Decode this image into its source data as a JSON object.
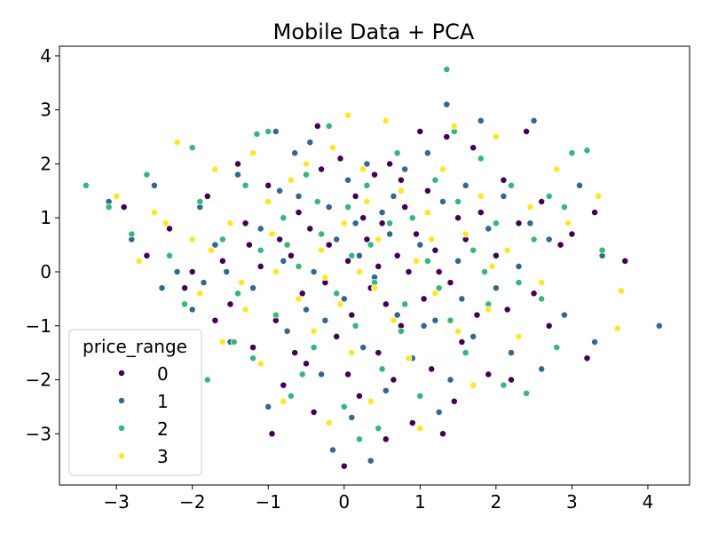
{
  "chart_data": {
    "type": "scatter",
    "title": "Mobile Data + PCA",
    "xlabel": "",
    "ylabel": "",
    "xlim": [
      -3.75,
      4.55
    ],
    "ylim": [
      -3.95,
      4.18
    ],
    "x_ticks": [
      -3,
      -2,
      -1,
      0,
      1,
      2,
      3,
      4
    ],
    "y_ticks": [
      -3,
      -2,
      -1,
      0,
      1,
      2,
      3,
      4
    ],
    "x_tick_labels": [
      "−3",
      "−2",
      "−1",
      "0",
      "1",
      "2",
      "3",
      "4"
    ],
    "y_tick_labels": [
      "−3",
      "−2",
      "−1",
      "0",
      "1",
      "2",
      "3",
      "4"
    ],
    "grid": false,
    "legend": {
      "title": "price_range",
      "position": "lower-left",
      "entries": [
        "0",
        "1",
        "2",
        "3"
      ]
    },
    "series": [
      {
        "name": "0",
        "color": "#440154",
        "points": [
          [
            -2.9,
            1.2
          ],
          [
            -2.6,
            0.3
          ],
          [
            -2.3,
            0.8
          ],
          [
            -2.1,
            -0.3
          ],
          [
            -1.8,
            1.4
          ],
          [
            -1.6,
            0.2
          ],
          [
            -1.5,
            -0.6
          ],
          [
            -1.3,
            0.9
          ],
          [
            -1.2,
            -1.4
          ],
          [
            -1.1,
            0.1
          ],
          [
            -1.0,
            1.6
          ],
          [
            -0.9,
            -0.9
          ],
          [
            -0.85,
            0.6
          ],
          [
            -0.8,
            -2.1
          ],
          [
            -0.7,
            0.3
          ],
          [
            -0.6,
            1.1
          ],
          [
            -0.55,
            -0.4
          ],
          [
            -0.5,
            -1.7
          ],
          [
            -0.45,
            0.8
          ],
          [
            -0.4,
            -2.6
          ],
          [
            -0.3,
            1.9
          ],
          [
            -0.25,
            -0.2
          ],
          [
            -0.2,
            0.5
          ],
          [
            -0.1,
            -1.2
          ],
          [
            -0.05,
            2.1
          ],
          [
            0.0,
            -3.6
          ],
          [
            0.05,
            0.2
          ],
          [
            0.1,
            -0.8
          ],
          [
            0.15,
            1.4
          ],
          [
            0.2,
            -2.3
          ],
          [
            0.3,
            0.6
          ],
          [
            0.35,
            -0.3
          ],
          [
            0.4,
            1.8
          ],
          [
            0.45,
            -1.5
          ],
          [
            0.5,
            0.9
          ],
          [
            0.55,
            -0.6
          ],
          [
            0.6,
            2.0
          ],
          [
            0.65,
            -2.0
          ],
          [
            0.7,
            0.3
          ],
          [
            0.75,
            -1.0
          ],
          [
            0.8,
            1.2
          ],
          [
            0.85,
            0.0
          ],
          [
            0.9,
            -2.8
          ],
          [
            0.95,
            0.7
          ],
          [
            1.0,
            2.6
          ],
          [
            1.05,
            -0.5
          ],
          [
            1.1,
            1.5
          ],
          [
            1.15,
            -1.8
          ],
          [
            1.2,
            0.4
          ],
          [
            1.3,
            -3.0
          ],
          [
            1.35,
            2.5
          ],
          [
            1.4,
            -0.2
          ],
          [
            1.5,
            1.0
          ],
          [
            1.55,
            -1.3
          ],
          [
            1.6,
            0.6
          ],
          [
            1.7,
            2.3
          ],
          [
            1.75,
            -0.8
          ],
          [
            1.8,
            1.1
          ],
          [
            1.9,
            -1.9
          ],
          [
            2.0,
            0.3
          ],
          [
            2.1,
            1.7
          ],
          [
            2.2,
            -2.0
          ],
          [
            2.3,
            0.9
          ],
          [
            2.4,
            2.6
          ],
          [
            2.5,
            -0.4
          ],
          [
            2.6,
            1.3
          ],
          [
            2.7,
            -1.0
          ],
          [
            2.8,
            1.9
          ],
          [
            3.0,
            0.7
          ],
          [
            3.2,
            -1.6
          ],
          [
            3.3,
            1.1
          ],
          [
            3.7,
            0.2
          ],
          [
            -1.4,
            2.0
          ],
          [
            -0.95,
            -3.0
          ],
          [
            -0.35,
            2.7
          ],
          [
            0.25,
            1.0
          ],
          [
            0.55,
            -3.1
          ],
          [
            1.25,
            0.0
          ],
          [
            -2.0,
            0.0
          ],
          [
            -1.7,
            -0.9
          ],
          [
            -0.65,
            -1.5
          ],
          [
            0.05,
            -1.9
          ],
          [
            0.75,
            1.7
          ],
          [
            1.45,
            -2.4
          ],
          [
            2.15,
            -0.7
          ],
          [
            2.85,
            0.5
          ],
          [
            -1.25,
            0.5
          ],
          [
            0.45,
            0.1
          ]
        ]
      },
      {
        "name": "1",
        "color": "#31688e",
        "points": [
          [
            -3.1,
            1.3
          ],
          [
            -2.8,
            0.6
          ],
          [
            -2.5,
            1.6
          ],
          [
            -2.2,
            0.0
          ],
          [
            -2.0,
            -0.7
          ],
          [
            -1.9,
            1.2
          ],
          [
            -1.7,
            0.5
          ],
          [
            -1.5,
            -1.3
          ],
          [
            -1.4,
            1.8
          ],
          [
            -1.2,
            -0.3
          ],
          [
            -1.1,
            0.8
          ],
          [
            -1.0,
            -2.5
          ],
          [
            -0.9,
            2.6
          ],
          [
            -0.8,
            0.2
          ],
          [
            -0.75,
            -1.1
          ],
          [
            -0.6,
            1.4
          ],
          [
            -0.5,
            -0.7
          ],
          [
            -0.45,
            2.4
          ],
          [
            -0.4,
            0.0
          ],
          [
            -0.3,
            -1.9
          ],
          [
            -0.2,
            1.2
          ],
          [
            -0.15,
            -3.3
          ],
          [
            -0.1,
            0.6
          ],
          [
            0.0,
            -0.5
          ],
          [
            0.05,
            1.7
          ],
          [
            0.1,
            -2.7
          ],
          [
            0.2,
            0.3
          ],
          [
            0.25,
            -1.4
          ],
          [
            0.3,
            2.0
          ],
          [
            0.4,
            -0.1
          ],
          [
            0.5,
            1.1
          ],
          [
            0.55,
            -2.2
          ],
          [
            0.6,
            0.7
          ],
          [
            0.7,
            -0.8
          ],
          [
            0.8,
            1.9
          ],
          [
            0.9,
            -1.6
          ],
          [
            1.0,
            0.5
          ],
          [
            1.1,
            2.2
          ],
          [
            1.2,
            -0.9
          ],
          [
            1.3,
            1.3
          ],
          [
            1.35,
            3.1
          ],
          [
            1.4,
            -2.0
          ],
          [
            1.5,
            0.2
          ],
          [
            1.6,
            1.6
          ],
          [
            1.7,
            -1.2
          ],
          [
            1.8,
            2.8
          ],
          [
            1.9,
            0.8
          ],
          [
            2.0,
            -0.3
          ],
          [
            2.1,
            1.4
          ],
          [
            2.2,
            -1.5
          ],
          [
            2.3,
            0.1
          ],
          [
            2.5,
            2.8
          ],
          [
            2.6,
            -1.8
          ],
          [
            2.7,
            0.6
          ],
          [
            2.9,
            -0.8
          ],
          [
            3.1,
            1.6
          ],
          [
            3.3,
            -1.3
          ],
          [
            3.4,
            0.3
          ],
          [
            4.15,
            -1.0
          ],
          [
            -2.4,
            -0.3
          ],
          [
            -1.55,
            0.0
          ],
          [
            -0.65,
            2.2
          ],
          [
            0.35,
            -3.5
          ],
          [
            1.25,
            -2.6
          ],
          [
            -1.85,
            -0.2
          ],
          [
            -0.25,
            -0.9
          ],
          [
            0.65,
            1.4
          ],
          [
            1.55,
            -0.5
          ],
          [
            2.45,
            0.9
          ],
          [
            -0.85,
            1.5
          ],
          [
            0.15,
            0.9
          ],
          [
            1.05,
            -1.0
          ]
        ]
      },
      {
        "name": "2",
        "color": "#35b779",
        "points": [
          [
            -3.4,
            1.6
          ],
          [
            -3.1,
            1.2
          ],
          [
            -2.8,
            0.7
          ],
          [
            -2.6,
            1.8
          ],
          [
            -2.3,
            0.3
          ],
          [
            -2.1,
            -0.6
          ],
          [
            -1.9,
            1.3
          ],
          [
            -1.8,
            -2.0
          ],
          [
            -1.6,
            0.6
          ],
          [
            -1.4,
            -0.4
          ],
          [
            -1.3,
            1.6
          ],
          [
            -1.2,
            -1.6
          ],
          [
            -1.1,
            0.4
          ],
          [
            -1.0,
            2.6
          ],
          [
            -0.9,
            -0.8
          ],
          [
            -0.8,
            1.0
          ],
          [
            -0.7,
            -2.3
          ],
          [
            -0.6,
            0.1
          ],
          [
            -0.5,
            1.8
          ],
          [
            -0.4,
            -1.4
          ],
          [
            -0.3,
            0.7
          ],
          [
            -0.2,
            2.7
          ],
          [
            -0.1,
            -0.4
          ],
          [
            0.0,
            -2.5
          ],
          [
            0.05,
            1.2
          ],
          [
            0.1,
            0.3
          ],
          [
            0.15,
            -1.0
          ],
          [
            0.2,
            -3.1
          ],
          [
            0.3,
            1.6
          ],
          [
            0.4,
            -0.2
          ],
          [
            0.5,
            -1.8
          ],
          [
            0.6,
            0.9
          ],
          [
            0.7,
            2.2
          ],
          [
            0.8,
            -0.6
          ],
          [
            0.9,
            1.0
          ],
          [
            1.0,
            -2.3
          ],
          [
            1.1,
            0.2
          ],
          [
            1.2,
            1.7
          ],
          [
            1.35,
            3.75
          ],
          [
            1.4,
            -0.9
          ],
          [
            1.5,
            1.3
          ],
          [
            1.6,
            -1.5
          ],
          [
            1.7,
            0.4
          ],
          [
            1.8,
            2.1
          ],
          [
            1.9,
            -0.6
          ],
          [
            2.0,
            0.9
          ],
          [
            2.1,
            -2.1
          ],
          [
            2.2,
            1.6
          ],
          [
            2.3,
            -0.2
          ],
          [
            2.4,
            -2.25
          ],
          [
            2.5,
            0.6
          ],
          [
            2.7,
            1.4
          ],
          [
            2.8,
            -1.4
          ],
          [
            2.9,
            1.2
          ],
          [
            3.0,
            2.2
          ],
          [
            3.2,
            2.25
          ],
          [
            3.4,
            0.4
          ],
          [
            -2.0,
            2.3
          ],
          [
            -1.15,
            2.55
          ],
          [
            -0.55,
            -1.9
          ],
          [
            0.45,
            -2.9
          ],
          [
            1.45,
            2.6
          ],
          [
            -1.45,
            -1.3
          ],
          [
            -0.35,
            1.3
          ],
          [
            0.75,
            -1.1
          ],
          [
            1.85,
            0.0
          ],
          [
            2.6,
            -0.5
          ],
          [
            -0.75,
            0.5
          ],
          [
            0.35,
            0.5
          ],
          [
            1.25,
            -0.3
          ]
        ]
      },
      {
        "name": "3",
        "color": "#fde725",
        "points": [
          [
            -3.0,
            1.4
          ],
          [
            -2.7,
            0.2
          ],
          [
            -2.5,
            1.1
          ],
          [
            -2.2,
            2.4
          ],
          [
            -2.0,
            0.6
          ],
          [
            -1.9,
            -0.4
          ],
          [
            -1.7,
            1.9
          ],
          [
            -1.6,
            -1.3
          ],
          [
            -1.5,
            0.9
          ],
          [
            -1.3,
            -0.7
          ],
          [
            -1.2,
            2.2
          ],
          [
            -1.1,
            -1.7
          ],
          [
            -1.0,
            1.3
          ],
          [
            -0.9,
            0.0
          ],
          [
            -0.8,
            -2.4
          ],
          [
            -0.7,
            1.7
          ],
          [
            -0.6,
            -0.5
          ],
          [
            -0.5,
            2.0
          ],
          [
            -0.4,
            -1.1
          ],
          [
            -0.3,
            0.4
          ],
          [
            -0.2,
            -2.8
          ],
          [
            -0.15,
            2.3
          ],
          [
            -0.05,
            -0.6
          ],
          [
            0.0,
            0.9
          ],
          [
            0.05,
            2.9
          ],
          [
            0.1,
            -1.5
          ],
          [
            0.2,
            0.0
          ],
          [
            0.3,
            1.3
          ],
          [
            0.35,
            -2.4
          ],
          [
            0.45,
            0.6
          ],
          [
            0.55,
            2.8
          ],
          [
            0.65,
            -0.9
          ],
          [
            0.75,
            1.5
          ],
          [
            0.85,
            -1.6
          ],
          [
            0.95,
            0.2
          ],
          [
            1.0,
            -2.9
          ],
          [
            1.1,
            1.1
          ],
          [
            1.2,
            -0.4
          ],
          [
            1.3,
            1.9
          ],
          [
            1.45,
            2.7
          ],
          [
            1.5,
            -1.1
          ],
          [
            1.6,
            0.7
          ],
          [
            1.7,
            -2.1
          ],
          [
            1.8,
            1.4
          ],
          [
            1.9,
            -0.7
          ],
          [
            2.0,
            2.5
          ],
          [
            2.15,
            0.4
          ],
          [
            2.3,
            -1.2
          ],
          [
            2.45,
            1.2
          ],
          [
            2.6,
            -0.2
          ],
          [
            2.8,
            1.9
          ],
          [
            2.95,
            0.9
          ],
          [
            3.35,
            1.4
          ],
          [
            3.6,
            -1.05
          ],
          [
            3.65,
            -0.35
          ],
          [
            -1.75,
            0.4
          ],
          [
            -0.95,
            0.7
          ],
          [
            -0.25,
            -0.1
          ],
          [
            0.4,
            -0.3
          ],
          [
            1.15,
            0.6
          ],
          [
            1.95,
            0.1
          ],
          [
            -2.35,
            0.9
          ],
          [
            -1.35,
            -0.2
          ],
          [
            0.25,
            1.9
          ]
        ]
      }
    ]
  }
}
